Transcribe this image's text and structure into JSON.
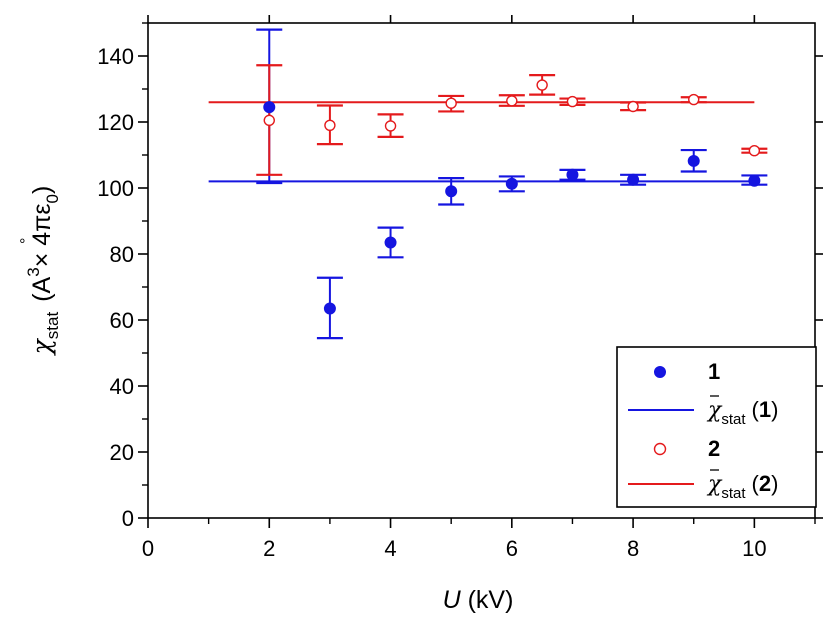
{
  "chart_data": {
    "type": "scatter",
    "title": "",
    "xlabel": {
      "var": "U",
      "unit": "(kV)"
    },
    "ylabel": {
      "symbol": "χ",
      "subscript": "stat",
      "unit_open": "(",
      "unit_ring": "°",
      "unit_A": "A",
      "unit_exp": "3",
      "unit_times": "× 4πε",
      "unit_sub": "0",
      "unit_close": ")"
    },
    "xlim": [
      0,
      11
    ],
    "ylim": [
      0,
      150
    ],
    "xticks": [
      0,
      2,
      4,
      6,
      8,
      10
    ],
    "xticks_minor": [
      1,
      3,
      5,
      7,
      9,
      11
    ],
    "yticks": [
      0,
      20,
      40,
      60,
      80,
      100,
      120,
      140
    ],
    "yticks_minor": [
      10,
      30,
      50,
      70,
      90,
      110,
      130,
      150
    ],
    "grid": false,
    "legend_position": "bottom-right",
    "series": [
      {
        "name": "1",
        "marker": "filled-circle",
        "color": "#1515e0",
        "x": [
          2,
          3,
          4,
          5,
          6,
          7,
          8,
          9,
          10
        ],
        "y": [
          124.5,
          63.5,
          83.5,
          99,
          101.3,
          104,
          102.5,
          108.2,
          102.2
        ],
        "y_err_low": [
          101.5,
          54.5,
          79,
          95,
          99,
          102.5,
          101,
          105,
          101
        ],
        "y_err_high": [
          148,
          72.8,
          88,
          103,
          103.5,
          105.5,
          104,
          111.5,
          103.8
        ]
      },
      {
        "name": "2",
        "marker": "open-circle",
        "color": "#e41a1c",
        "x": [
          2,
          3,
          4,
          5,
          6,
          6.5,
          7,
          8,
          9,
          10
        ],
        "y": [
          120.5,
          119,
          118.8,
          125.7,
          126.4,
          131.2,
          126.2,
          124.7,
          126.8,
          111.3
        ],
        "y_err_low": [
          104,
          113.3,
          115.5,
          123.2,
          124.9,
          128.3,
          125.2,
          123.6,
          126,
          110.7
        ],
        "y_err_high": [
          137.2,
          125,
          122.3,
          127.9,
          128.1,
          134.2,
          127.1,
          125.9,
          127.5,
          111.9
        ]
      }
    ],
    "mean_lines": [
      {
        "name": "mean 1",
        "color": "#1515e0",
        "value": 102,
        "x_range": [
          1,
          10
        ]
      },
      {
        "name": "mean 2",
        "color": "#e41a1c",
        "value": 126,
        "x_range": [
          1,
          10
        ]
      }
    ],
    "legend": [
      {
        "kind": "marker-filled",
        "series": "1",
        "color": "#1515e0",
        "label": "1"
      },
      {
        "kind": "line",
        "series": "mean 1",
        "color": "#1515e0",
        "symbol": "χ",
        "sub": "stat",
        "num": "1"
      },
      {
        "kind": "marker-open",
        "series": "2",
        "color": "#e41a1c",
        "label": "2"
      },
      {
        "kind": "line",
        "series": "mean 2",
        "color": "#e41a1c",
        "symbol": "χ",
        "sub": "stat",
        "num": "2"
      }
    ]
  }
}
